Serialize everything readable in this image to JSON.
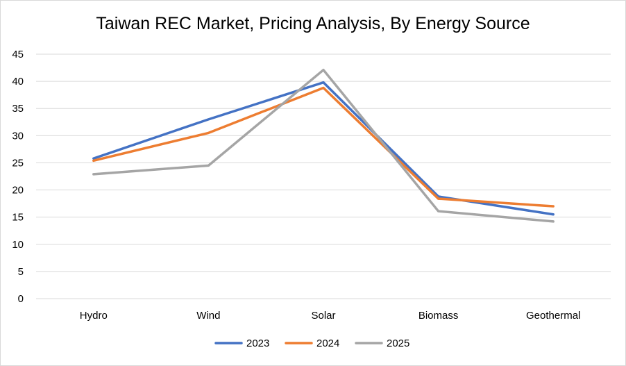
{
  "chart_data": {
    "type": "line",
    "title": "Taiwan REC Market, Pricing Analysis, By Energy Source",
    "categories": [
      "Hydro",
      "Wind",
      "Solar",
      "Biomass",
      "Geothermal"
    ],
    "ylim": [
      0,
      45
    ],
    "yticks": [
      0,
      5,
      10,
      15,
      20,
      25,
      30,
      35,
      40,
      45
    ],
    "grid": true,
    "legend_position": "bottom",
    "series": [
      {
        "name": "2023",
        "color": "#4472C4",
        "values": [
          25.8,
          33.0,
          39.8,
          18.8,
          15.5
        ]
      },
      {
        "name": "2024",
        "color": "#ED7D31",
        "values": [
          25.4,
          30.5,
          38.8,
          18.4,
          17.0
        ]
      },
      {
        "name": "2025",
        "color": "#A5A5A5",
        "values": [
          22.9,
          24.5,
          42.1,
          16.1,
          14.2
        ]
      }
    ]
  }
}
